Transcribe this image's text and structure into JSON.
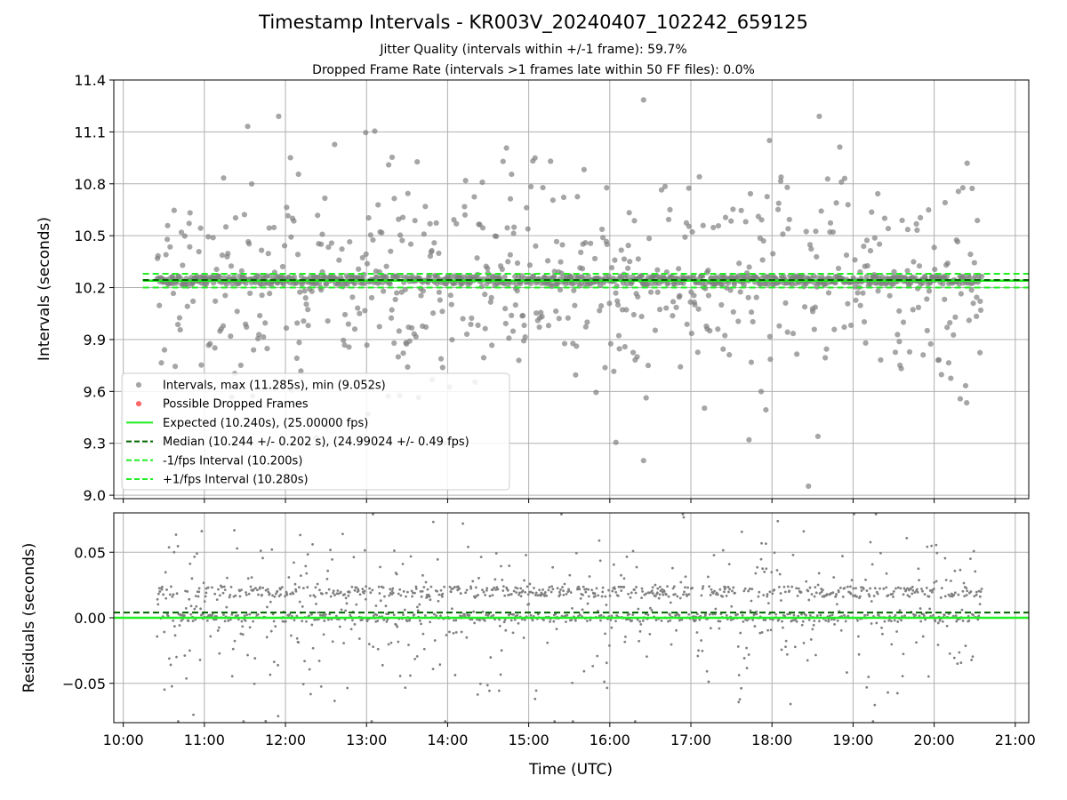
{
  "title": "Timestamp Intervals - KR003V_20240407_102242_659125",
  "subtitle_lines": [
    "Jitter Quality (intervals within +/-1 frame): 59.7%",
    "Dropped Frame Rate (intervals >1 frames late within 50 FF files): 0.0%"
  ],
  "colors": {
    "intervals": "#808080",
    "dropped": "#ff4444",
    "expected": "#22ee22",
    "median": "#006400",
    "interval_bounds": "#22ee22",
    "grid": "#b0b0b0"
  },
  "chart_data": [
    {
      "type": "scatter",
      "panel": "intervals",
      "ylabel": "Intervals (seconds)",
      "xlabel": "",
      "xlim": [
        "09:53",
        "21:10"
      ],
      "ylim": [
        8.98,
        11.4
      ],
      "yticks": [
        "9.0",
        "9.3",
        "9.6",
        "9.9",
        "10.2",
        "10.5",
        "10.8",
        "11.1",
        "11.4"
      ],
      "grid": true,
      "legend_position": "lower-left",
      "max_interval": 11.285,
      "min_interval": 9.052,
      "expected": 10.24,
      "expected_fps": 25.0,
      "median": 10.244,
      "median_std": 0.202,
      "median_fps": 24.99024,
      "median_fps_std": 0.49,
      "lower_bound": 10.2,
      "upper_bound": 10.28,
      "x_range": [
        "10:25",
        "20:35"
      ],
      "notable_points": [
        {
          "x": "16:25",
          "y": 11.285,
          "label": "max"
        },
        {
          "x": "18:27",
          "y": 9.052,
          "label": "min"
        },
        {
          "x": "11:55",
          "y": 11.19
        },
        {
          "x": "18:35",
          "y": 11.19
        },
        {
          "x": "16:25",
          "y": 9.2
        },
        {
          "x": "17:43",
          "y": 9.32
        },
        {
          "x": "18:34",
          "y": 9.34
        }
      ],
      "series": [
        {
          "name": "Intervals, max (11.285s), min (9.052s)",
          "kind": "scatter"
        },
        {
          "name": "Possible Dropped Frames",
          "kind": "scatter"
        },
        {
          "name": "Expected (10.240s), (25.00000 fps)",
          "kind": "hline"
        },
        {
          "name": "Median (10.244 +/- 0.202 s), (24.99024 +/- 0.49 fps)",
          "kind": "hline"
        },
        {
          "name": "-1/fps Interval (10.200s)",
          "kind": "hline"
        },
        {
          "name": "+1/fps Interval (10.280s)",
          "kind": "hline"
        }
      ]
    },
    {
      "type": "scatter",
      "panel": "residuals",
      "ylabel": "Residuals (seconds)",
      "xlabel": "Time (UTC)",
      "xlim": [
        "09:53",
        "21:10"
      ],
      "ylim": [
        -0.08,
        0.08
      ],
      "yticks": [
        "−0.05",
        "0.00",
        "0.05"
      ],
      "ytick_values": [
        -0.05,
        0.0,
        0.05
      ],
      "xticks": [
        "10:00",
        "11:00",
        "12:00",
        "13:00",
        "14:00",
        "15:00",
        "16:00",
        "17:00",
        "18:00",
        "19:00",
        "20:00",
        "21:00"
      ],
      "grid": true,
      "zero_line": 0.0,
      "median_residual": 0.004,
      "clusters": [
        0.0,
        0.02
      ]
    }
  ]
}
